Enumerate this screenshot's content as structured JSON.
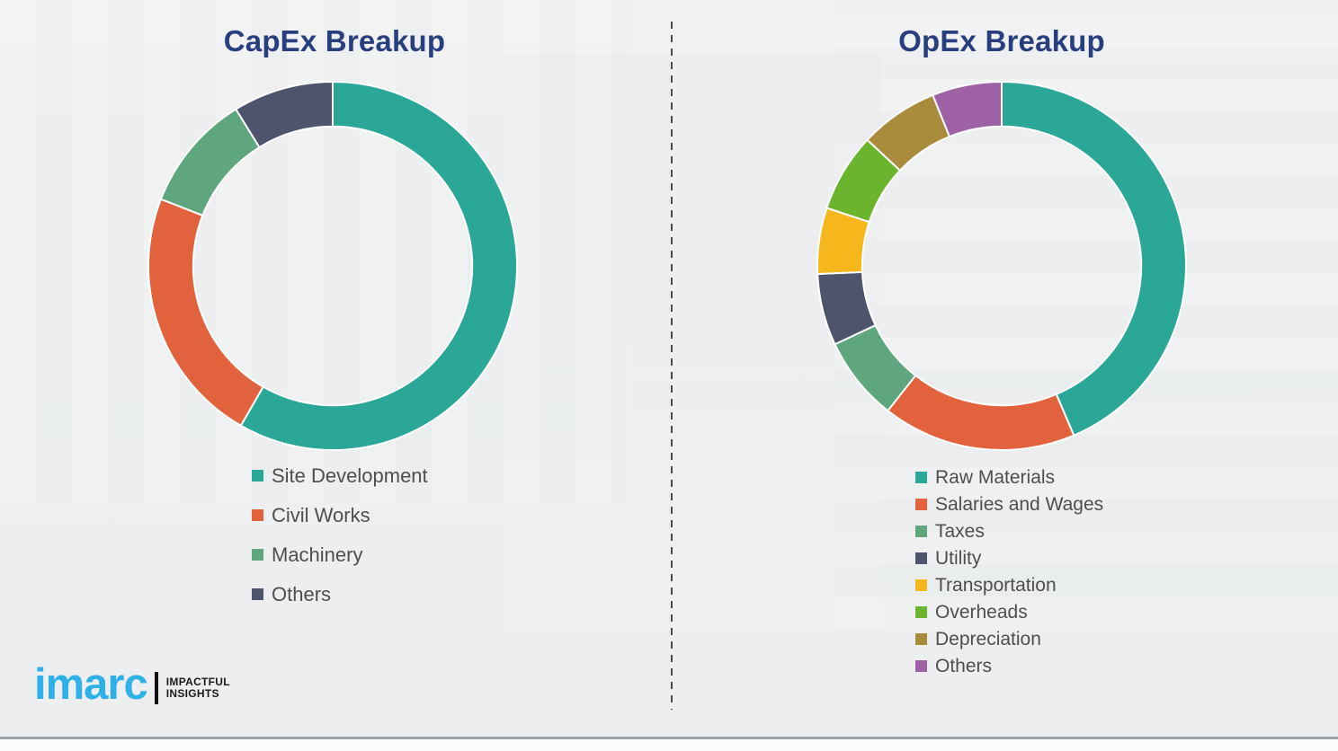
{
  "page": {
    "background_color": "#eef0f1",
    "divider_color": "#4c4c4c",
    "bottom_line_color": "#9aa0a4",
    "title_color": "#283E7E",
    "legend_text_color": "#4e4e4e"
  },
  "logo": {
    "brand": "imarc",
    "brand_color": "#2fb0e8",
    "tagline_line1": "IMPACTFUL",
    "tagline_line2": "INSIGHTS"
  },
  "chart_data": [
    {
      "type": "pie",
      "variant": "donut",
      "title": "CapEx Breakup",
      "start_angle_deg": 0,
      "direction": "clockwise",
      "inner_radius_ratio": 0.757,
      "segment_gap_color": "#ffffff",
      "legend_position": "below",
      "segments": [
        {
          "label": "Site Development",
          "value": 58.3,
          "color": "#2BA797"
        },
        {
          "label": "Civil Works",
          "value": 22.6,
          "color": "#E2623E"
        },
        {
          "label": "Machinery",
          "value": 10.3,
          "color": "#5FA57E"
        },
        {
          "label": "Others",
          "value": 8.8,
          "color": "#4E546C"
        }
      ]
    },
    {
      "type": "pie",
      "variant": "donut",
      "title": "OpEx Breakup",
      "start_angle_deg": 0,
      "direction": "clockwise",
      "inner_radius_ratio": 0.757,
      "segment_gap_color": "#ffffff",
      "legend_position": "below",
      "segments": [
        {
          "label": "Raw Materials",
          "value": 43.6,
          "color": "#2BA797"
        },
        {
          "label": "Salaries and Wages",
          "value": 17.0,
          "color": "#E2623E"
        },
        {
          "label": "Taxes",
          "value": 7.4,
          "color": "#5FA57E"
        },
        {
          "label": "Utility",
          "value": 6.3,
          "color": "#4E546C"
        },
        {
          "label": "Transportation",
          "value": 5.8,
          "color": "#F6B71C"
        },
        {
          "label": "Overheads",
          "value": 6.9,
          "color": "#6DB42E"
        },
        {
          "label": "Depreciation",
          "value": 6.9,
          "color": "#A98C3B"
        },
        {
          "label": "Others",
          "value": 6.1,
          "color": "#9E61A5"
        }
      ]
    }
  ]
}
